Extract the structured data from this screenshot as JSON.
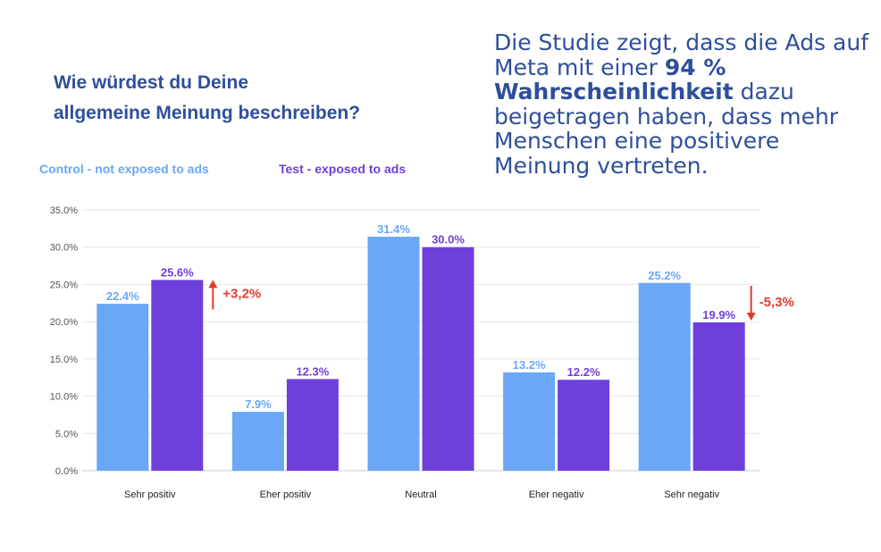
{
  "question": {
    "line1": "Wie würdest du Deine",
    "line2": "allgemeine Meinung beschreiben?"
  },
  "study": {
    "part1": "Die Studie zeigt, dass die Ads auf Meta mit einer ",
    "bold": "94 % Wahrscheinlichkeit",
    "part2": " dazu beigetragen haben, dass mehr Menschen eine positivere Meinung vertreten."
  },
  "colors": {
    "control": "#6aa7f7",
    "test": "#6f3fdb",
    "annotation": "#e23b2e",
    "title": "#2f4f9a",
    "grid": "#e6e6e6",
    "axis_text": "#555555"
  },
  "chart_data": {
    "type": "bar",
    "categories": [
      "Sehr positiv",
      "Eher positiv",
      "Neutral",
      "Eher negativ",
      "Sehr negativ"
    ],
    "series": [
      {
        "name": "Control - not exposed to ads",
        "values": [
          22.4,
          7.9,
          31.4,
          13.2,
          25.2
        ],
        "labels": [
          "22.4%",
          "7.9%",
          "31.4%",
          "13.2%",
          "25.2%"
        ]
      },
      {
        "name": "Test - exposed to ads",
        "values": [
          25.6,
          12.3,
          30.0,
          12.2,
          19.9
        ],
        "labels": [
          "25.6%",
          "12.3%",
          "30.0%",
          "12.2%",
          "19.9%"
        ]
      }
    ],
    "yticks": [
      "0.0%",
      "5.0%",
      "10.0%",
      "15.0%",
      "20.0%",
      "25.0%",
      "30.0%",
      "35.0%"
    ],
    "ylim": [
      0,
      35
    ],
    "grid": true,
    "legend_position": "top-left",
    "annotations": [
      {
        "category": "Sehr positiv",
        "text": "+3,2%",
        "direction": "up"
      },
      {
        "category": "Sehr negativ",
        "text": "-5,3%",
        "direction": "down"
      }
    ]
  }
}
